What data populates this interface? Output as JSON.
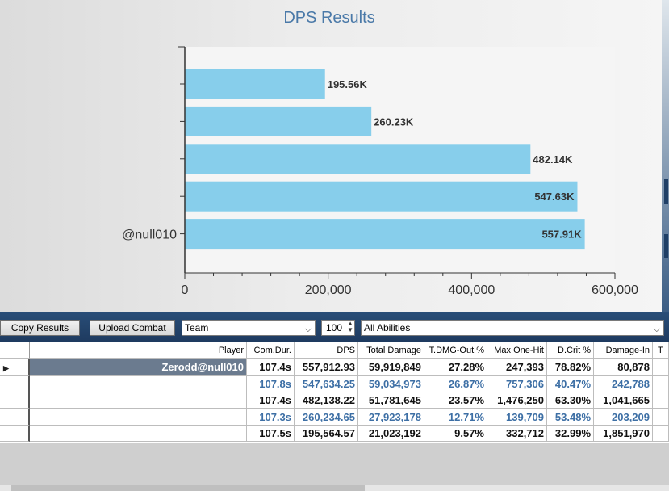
{
  "chart_data": {
    "type": "bar",
    "title": "DPS Results",
    "orientation": "horizontal",
    "categories": [
      "",
      "",
      "",
      "",
      "@null010"
    ],
    "values": [
      195564.57,
      260234.65,
      482138.22,
      547634.25,
      557912.93
    ],
    "data_labels": [
      "195.56K",
      "260.23K",
      "482.14K",
      "547.63K",
      "557.91K"
    ],
    "xticks": [
      "0",
      "200,000",
      "400,000",
      "600,000"
    ],
    "xlim": [
      0,
      600000
    ],
    "bar_color": "#87ceeb",
    "xlabel": "",
    "ylabel": ""
  },
  "toolbar": {
    "copy_label": "Copy Results",
    "upload_label": "Upload Combat",
    "group_value": "Team",
    "count_value": "100",
    "abilities_value": "All Abilities"
  },
  "grid": {
    "columns": [
      "Player",
      "Com.Dur.",
      "DPS",
      "Total Damage",
      "T.DMG-Out %",
      "Max One-Hit",
      "D.Crit %",
      "Damage-In",
      "T"
    ],
    "rows": [
      {
        "player": "Zerodd@null010",
        "cells": [
          "107.4s",
          "557,912.93",
          "59,919,849",
          "27.28%",
          "247,393",
          "78.82%",
          "80,878"
        ]
      },
      {
        "player": "",
        "cells": [
          "107.8s",
          "547,634.25",
          "59,034,973",
          "26.87%",
          "757,306",
          "40.47%",
          "242,788"
        ]
      },
      {
        "player": "",
        "cells": [
          "107.4s",
          "482,138.22",
          "51,781,645",
          "23.57%",
          "1,476,250",
          "63.30%",
          "1,041,665"
        ]
      },
      {
        "player": "",
        "cells": [
          "107.3s",
          "260,234.65",
          "27,923,178",
          "12.71%",
          "139,709",
          "53.48%",
          "203,209"
        ]
      },
      {
        "player": "",
        "cells": [
          "107.5s",
          "195,564.57",
          "21,023,192",
          "9.57%",
          "332,712",
          "32.99%",
          "1,851,970"
        ]
      }
    ]
  },
  "colors": {
    "toolbar_bg": "#1e3a5f",
    "selected_row_bg": "#6b7b8f",
    "alt_row_text": "#3d6fa5",
    "title": "#4a79a8"
  }
}
